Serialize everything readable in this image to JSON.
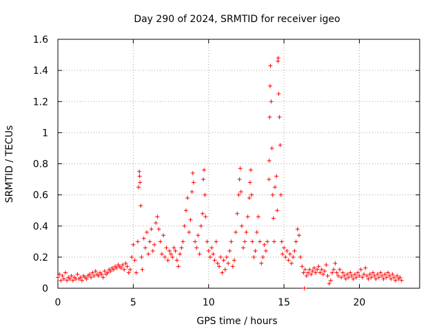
{
  "chart_data": {
    "type": "scatter",
    "title": "Day 290 of 2024, SRMTID for receiver igeo",
    "xlabel": "GPS time / hours",
    "ylabel": "SRMTID / TECUs",
    "xlim": [
      0,
      24
    ],
    "ylim": [
      0,
      1.6
    ],
    "xticks": [
      0,
      5,
      10,
      15,
      20
    ],
    "yticks": [
      0,
      0.2,
      0.4,
      0.6,
      0.8,
      1,
      1.2,
      1.4,
      1.6
    ],
    "ytick_labels": [
      "0",
      "0.2",
      "0.4",
      "0.6",
      "0.8",
      "1",
      "1.2",
      "1.4",
      "1.6"
    ],
    "grid": true,
    "marker": "+",
    "color": "#ff0000",
    "series": [
      {
        "name": "SRMTID",
        "points": [
          [
            0.0,
            0.07
          ],
          [
            0.1,
            0.09
          ],
          [
            0.2,
            0.05
          ],
          [
            0.3,
            0.08
          ],
          [
            0.4,
            0.06
          ],
          [
            0.5,
            0.1
          ],
          [
            0.6,
            0.05
          ],
          [
            0.7,
            0.07
          ],
          [
            0.8,
            0.06
          ],
          [
            0.9,
            0.08
          ],
          [
            1.0,
            0.05
          ],
          [
            1.1,
            0.07
          ],
          [
            1.2,
            0.06
          ],
          [
            1.3,
            0.09
          ],
          [
            1.4,
            0.06
          ],
          [
            1.5,
            0.07
          ],
          [
            1.6,
            0.05
          ],
          [
            1.7,
            0.08
          ],
          [
            1.8,
            0.07
          ],
          [
            1.9,
            0.06
          ],
          [
            2.0,
            0.08
          ],
          [
            2.1,
            0.09
          ],
          [
            2.2,
            0.07
          ],
          [
            2.3,
            0.1
          ],
          [
            2.4,
            0.08
          ],
          [
            2.5,
            0.11
          ],
          [
            2.6,
            0.09
          ],
          [
            2.7,
            0.08
          ],
          [
            2.8,
            0.1
          ],
          [
            2.9,
            0.09
          ],
          [
            3.0,
            0.07
          ],
          [
            3.1,
            0.11
          ],
          [
            3.2,
            0.09
          ],
          [
            3.3,
            0.1
          ],
          [
            3.4,
            0.12
          ],
          [
            3.5,
            0.11
          ],
          [
            3.6,
            0.13
          ],
          [
            3.7,
            0.12
          ],
          [
            3.8,
            0.14
          ],
          [
            3.9,
            0.13
          ],
          [
            4.0,
            0.15
          ],
          [
            4.1,
            0.14
          ],
          [
            4.2,
            0.13
          ],
          [
            4.3,
            0.15
          ],
          [
            4.4,
            0.12
          ],
          [
            4.5,
            0.16
          ],
          [
            4.6,
            0.14
          ],
          [
            4.7,
            0.1
          ],
          [
            4.8,
            0.12
          ],
          [
            4.9,
            0.2
          ],
          [
            5.0,
            0.28
          ],
          [
            5.1,
            0.18
          ],
          [
            5.2,
            0.1
          ],
          [
            5.3,
            0.3
          ],
          [
            5.35,
            0.65
          ],
          [
            5.4,
            0.75
          ],
          [
            5.42,
            0.72
          ],
          [
            5.45,
            0.68
          ],
          [
            5.5,
            0.53
          ],
          [
            5.55,
            0.2
          ],
          [
            5.6,
            0.12
          ],
          [
            5.7,
            0.32
          ],
          [
            5.8,
            0.26
          ],
          [
            5.9,
            0.36
          ],
          [
            6.0,
            0.22
          ],
          [
            6.1,
            0.3
          ],
          [
            6.2,
            0.38
          ],
          [
            6.3,
            0.24
          ],
          [
            6.4,
            0.28
          ],
          [
            6.5,
            0.42
          ],
          [
            6.6,
            0.46
          ],
          [
            6.7,
            0.38
          ],
          [
            6.8,
            0.3
          ],
          [
            6.9,
            0.22
          ],
          [
            7.0,
            0.34
          ],
          [
            7.1,
            0.2
          ],
          [
            7.2,
            0.26
          ],
          [
            7.3,
            0.18
          ],
          [
            7.4,
            0.24
          ],
          [
            7.5,
            0.22
          ],
          [
            7.6,
            0.2
          ],
          [
            7.7,
            0.26
          ],
          [
            7.8,
            0.24
          ],
          [
            7.9,
            0.18
          ],
          [
            8.0,
            0.14
          ],
          [
            8.1,
            0.22
          ],
          [
            8.2,
            0.26
          ],
          [
            8.3,
            0.3
          ],
          [
            8.4,
            0.4
          ],
          [
            8.5,
            0.5
          ],
          [
            8.6,
            0.58
          ],
          [
            8.7,
            0.36
          ],
          [
            8.8,
            0.44
          ],
          [
            8.9,
            0.62
          ],
          [
            8.95,
            0.74
          ],
          [
            9.0,
            0.68
          ],
          [
            9.1,
            0.3
          ],
          [
            9.2,
            0.26
          ],
          [
            9.3,
            0.34
          ],
          [
            9.4,
            0.22
          ],
          [
            9.5,
            0.4
          ],
          [
            9.6,
            0.48
          ],
          [
            9.65,
            0.7
          ],
          [
            9.7,
            0.76
          ],
          [
            9.75,
            0.6
          ],
          [
            9.8,
            0.46
          ],
          [
            9.9,
            0.3
          ],
          [
            10.0,
            0.24
          ],
          [
            10.1,
            0.2
          ],
          [
            10.2,
            0.26
          ],
          [
            10.3,
            0.22
          ],
          [
            10.4,
            0.18
          ],
          [
            10.5,
            0.3
          ],
          [
            10.6,
            0.16
          ],
          [
            10.7,
            0.14
          ],
          [
            10.8,
            0.2
          ],
          [
            10.9,
            0.1
          ],
          [
            11.0,
            0.18
          ],
          [
            11.1,
            0.12
          ],
          [
            11.2,
            0.2
          ],
          [
            11.3,
            0.16
          ],
          [
            11.4,
            0.24
          ],
          [
            11.5,
            0.3
          ],
          [
            11.6,
            0.14
          ],
          [
            11.7,
            0.18
          ],
          [
            11.8,
            0.36
          ],
          [
            11.9,
            0.48
          ],
          [
            12.0,
            0.6
          ],
          [
            12.05,
            0.7
          ],
          [
            12.1,
            0.77
          ],
          [
            12.15,
            0.62
          ],
          [
            12.2,
            0.4
          ],
          [
            12.3,
            0.26
          ],
          [
            12.4,
            0.3
          ],
          [
            12.5,
            0.36
          ],
          [
            12.6,
            0.46
          ],
          [
            12.7,
            0.58
          ],
          [
            12.75,
            0.68
          ],
          [
            12.8,
            0.76
          ],
          [
            12.85,
            0.6
          ],
          [
            12.9,
            0.3
          ],
          [
            13.0,
            0.2
          ],
          [
            13.1,
            0.24
          ],
          [
            13.2,
            0.36
          ],
          [
            13.3,
            0.46
          ],
          [
            13.4,
            0.3
          ],
          [
            13.5,
            0.16
          ],
          [
            13.6,
            0.2
          ],
          [
            13.7,
            0.28
          ],
          [
            13.8,
            0.24
          ],
          [
            13.9,
            0.3
          ],
          [
            14.0,
            0.7
          ],
          [
            14.02,
            0.82
          ],
          [
            14.05,
            1.1
          ],
          [
            14.08,
            1.3
          ],
          [
            14.1,
            1.43
          ],
          [
            14.15,
            1.2
          ],
          [
            14.2,
            0.9
          ],
          [
            14.25,
            0.6
          ],
          [
            14.3,
            0.45
          ],
          [
            14.35,
            0.3
          ],
          [
            14.4,
            0.65
          ],
          [
            14.5,
            0.72
          ],
          [
            14.55,
            0.5
          ],
          [
            14.6,
            1.46
          ],
          [
            14.62,
            1.48
          ],
          [
            14.65,
            1.25
          ],
          [
            14.7,
            1.1
          ],
          [
            14.75,
            0.92
          ],
          [
            14.8,
            0.6
          ],
          [
            14.85,
            0.3
          ],
          [
            14.9,
            0.22
          ],
          [
            15.0,
            0.26
          ],
          [
            15.1,
            0.2
          ],
          [
            15.2,
            0.24
          ],
          [
            15.3,
            0.18
          ],
          [
            15.4,
            0.22
          ],
          [
            15.5,
            0.16
          ],
          [
            15.6,
            0.2
          ],
          [
            15.7,
            0.24
          ],
          [
            15.8,
            0.3
          ],
          [
            15.9,
            0.38
          ],
          [
            16.0,
            0.34
          ],
          [
            16.1,
            0.2
          ],
          [
            16.2,
            0.14
          ],
          [
            16.3,
            0.1
          ],
          [
            16.35,
            0.0
          ],
          [
            16.4,
            0.12
          ],
          [
            16.5,
            0.08
          ],
          [
            16.6,
            0.1
          ],
          [
            16.7,
            0.12
          ],
          [
            16.8,
            0.09
          ],
          [
            16.9,
            0.11
          ],
          [
            17.0,
            0.13
          ],
          [
            17.1,
            0.1
          ],
          [
            17.2,
            0.12
          ],
          [
            17.3,
            0.14
          ],
          [
            17.4,
            0.1
          ],
          [
            17.5,
            0.12
          ],
          [
            17.6,
            0.09
          ],
          [
            17.7,
            0.11
          ],
          [
            17.8,
            0.15
          ],
          [
            17.9,
            0.08
          ],
          [
            18.0,
            0.03
          ],
          [
            18.1,
            0.05
          ],
          [
            18.2,
            0.1
          ],
          [
            18.3,
            0.12
          ],
          [
            18.4,
            0.16
          ],
          [
            18.5,
            0.1
          ],
          [
            18.6,
            0.08
          ],
          [
            18.7,
            0.12
          ],
          [
            18.8,
            0.07
          ],
          [
            18.9,
            0.1
          ],
          [
            19.0,
            0.08
          ],
          [
            19.1,
            0.06
          ],
          [
            19.2,
            0.09
          ],
          [
            19.3,
            0.07
          ],
          [
            19.4,
            0.1
          ],
          [
            19.5,
            0.08
          ],
          [
            19.6,
            0.06
          ],
          [
            19.7,
            0.09
          ],
          [
            19.8,
            0.07
          ],
          [
            19.9,
            0.1
          ],
          [
            20.0,
            0.08
          ],
          [
            20.1,
            0.12
          ],
          [
            20.2,
            0.07
          ],
          [
            20.3,
            0.09
          ],
          [
            20.4,
            0.13
          ],
          [
            20.5,
            0.08
          ],
          [
            20.6,
            0.06
          ],
          [
            20.7,
            0.09
          ],
          [
            20.8,
            0.07
          ],
          [
            20.9,
            0.1
          ],
          [
            21.0,
            0.08
          ],
          [
            21.1,
            0.06
          ],
          [
            21.2,
            0.09
          ],
          [
            21.3,
            0.07
          ],
          [
            21.4,
            0.1
          ],
          [
            21.5,
            0.08
          ],
          [
            21.6,
            0.06
          ],
          [
            21.7,
            0.09
          ],
          [
            21.8,
            0.07
          ],
          [
            21.9,
            0.1
          ],
          [
            22.0,
            0.08
          ],
          [
            22.1,
            0.06
          ],
          [
            22.2,
            0.09
          ],
          [
            22.3,
            0.07
          ],
          [
            22.4,
            0.05
          ],
          [
            22.5,
            0.08
          ],
          [
            22.6,
            0.06
          ],
          [
            22.7,
            0.07
          ],
          [
            22.8,
            0.05
          ]
        ]
      }
    ]
  }
}
